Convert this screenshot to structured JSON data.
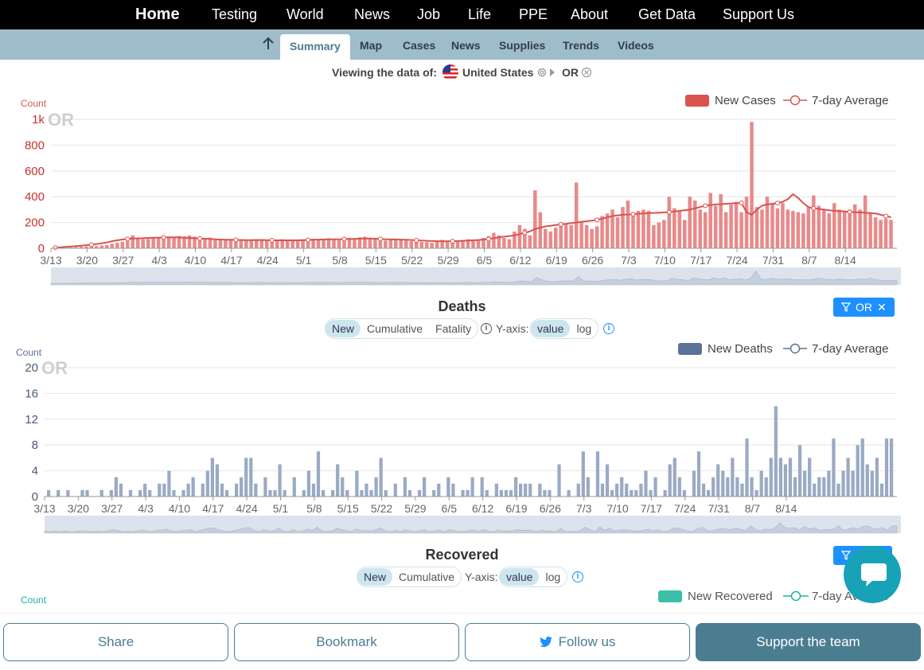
{
  "topnav": {
    "items": [
      "Home",
      "Testing",
      "World",
      "News",
      "Job",
      "Life",
      "PPE",
      "About",
      "Get Data",
      "Support Us"
    ]
  },
  "subnav": {
    "active": "Summary",
    "items": [
      "Map",
      "Cases",
      "News",
      "Supplies",
      "Trends",
      "Videos"
    ]
  },
  "viewing": {
    "prefix": "Viewing the data of:",
    "country": "United States",
    "state": "OR"
  },
  "x_ticks": [
    "3/13",
    "3/20",
    "3/27",
    "4/3",
    "4/10",
    "4/17",
    "4/24",
    "5/1",
    "5/8",
    "5/15",
    "5/22",
    "5/29",
    "6/5",
    "6/12",
    "6/19",
    "6/26",
    "7/3",
    "7/10",
    "7/17",
    "7/24",
    "7/31",
    "8/7",
    "8/14"
  ],
  "cases_chart": {
    "ylabel": "Count",
    "watermark": "OR",
    "legend_series": "New Cases",
    "legend_avg": "7-day Average",
    "color": "#d9534f",
    "bar_color": "#e88a8a",
    "y_ticks": [
      "0",
      "200",
      "400",
      "600",
      "800",
      "1k"
    ],
    "ymax": 1000
  },
  "deaths_section": {
    "title": "Deaths",
    "tabs": [
      "New",
      "Cumulative",
      "Fatality"
    ],
    "yaxis_label": "Y-axis:",
    "scale": [
      "value",
      "log"
    ],
    "filter_label": "OR"
  },
  "deaths_chart": {
    "ylabel": "Count",
    "watermark": "OR",
    "legend_series": "New Deaths",
    "legend_avg": "7-day Average",
    "color": "#5b7298",
    "bar_color": "#9aaac4",
    "y_ticks": [
      "0",
      "4",
      "8",
      "12",
      "16",
      "20"
    ],
    "ymax": 20
  },
  "recovered_section": {
    "title": "Recovered",
    "tabs": [
      "New",
      "Cumulative"
    ],
    "yaxis_label": "Y-axis:",
    "scale": [
      "value",
      "log"
    ],
    "ylabel": "Count",
    "legend_series": "New Recovered",
    "legend_avg": "7-day Average",
    "color": "#20b2a0"
  },
  "chart_data": [
    {
      "type": "bar",
      "title": "",
      "ylabel": "Count",
      "series": [
        {
          "name": "New Cases",
          "values": [
            0,
            3,
            5,
            7,
            10,
            12,
            14,
            16,
            18,
            22,
            25,
            35,
            42,
            50,
            55,
            100,
            80,
            70,
            72,
            80,
            85,
            75,
            90,
            88,
            95,
            92,
            100,
            90,
            80,
            75,
            82,
            70,
            65,
            72,
            68,
            60,
            58,
            62,
            65,
            70,
            68,
            60,
            55,
            62,
            70,
            60,
            55,
            58,
            62,
            60,
            75,
            72,
            70,
            78,
            65,
            62,
            70,
            80,
            75,
            85,
            90,
            78,
            72,
            65,
            60,
            70,
            75,
            70,
            65,
            55,
            60,
            50,
            48,
            42,
            55,
            65,
            50,
            45,
            55,
            60,
            70,
            58,
            62,
            80,
            95,
            120,
            100,
            80,
            70,
            130,
            180,
            150,
            100,
            450,
            280,
            150,
            130,
            160,
            200,
            185,
            180,
            510,
            200,
            180,
            150,
            170,
            250,
            270,
            300,
            240,
            320,
            370,
            260,
            290,
            300,
            290,
            180,
            200,
            220,
            400,
            310,
            290,
            220,
            400,
            370,
            300,
            280,
            430,
            330,
            420,
            280,
            340,
            360,
            280,
            400,
            980,
            320,
            300,
            400,
            340,
            310,
            350,
            300,
            290,
            280,
            270,
            320,
            410,
            330,
            300,
            270,
            350,
            300,
            280,
            300,
            340,
            300,
            410,
            280,
            240,
            220,
            230,
            220
          ],
          "avg": [
            5,
            8,
            11,
            14,
            17,
            20,
            24,
            28,
            32,
            38,
            45,
            55,
            62,
            68,
            72,
            75,
            77,
            78,
            80,
            82,
            83,
            84,
            85,
            85,
            84,
            82,
            80,
            78,
            76,
            74,
            72,
            70,
            68,
            66,
            66,
            65,
            64,
            63,
            63,
            64,
            64,
            63,
            62,
            62,
            62,
            62,
            62,
            62,
            63,
            64,
            66,
            67,
            68,
            69,
            70,
            70,
            71,
            72,
            73,
            74,
            75,
            75,
            74,
            72,
            70,
            69,
            68,
            67,
            66,
            64,
            62,
            60,
            58,
            56,
            55,
            55,
            55,
            55,
            56,
            58,
            60,
            62,
            64,
            68,
            72,
            78,
            85,
            90,
            95,
            100,
            110,
            120,
            130,
            150,
            160,
            170,
            175,
            180,
            185,
            190,
            195,
            200,
            205,
            210,
            215,
            220,
            230,
            240,
            250,
            255,
            260,
            262,
            265,
            268,
            270,
            272,
            274,
            276,
            278,
            280,
            285,
            290,
            295,
            300,
            310,
            320,
            330,
            335,
            340,
            342,
            345,
            348,
            350,
            352,
            280,
            260,
            300,
            330,
            340,
            345,
            350,
            360,
            380,
            420,
            390,
            350,
            320,
            310,
            305,
            300,
            295,
            290,
            288,
            285,
            282,
            280,
            278,
            275,
            272,
            270,
            260,
            250,
            240
          ]
        }
      ],
      "x_range": [
        "3/13",
        "8/20"
      ],
      "ylim": [
        0,
        1000
      ]
    },
    {
      "type": "bar",
      "title": "Deaths",
      "ylabel": "Count",
      "series": [
        {
          "name": "New Deaths",
          "values": [
            1,
            0,
            1,
            0,
            1,
            0,
            0,
            1,
            1,
            0,
            0,
            1,
            0,
            1,
            3,
            2,
            0,
            1,
            0,
            1,
            2,
            1,
            0,
            2,
            2,
            4,
            1,
            0,
            1,
            2,
            3,
            0,
            2,
            4,
            6,
            5,
            2,
            1,
            0,
            2,
            3,
            6,
            6,
            2,
            0,
            3,
            1,
            1,
            5,
            1,
            0,
            3,
            0,
            1,
            4,
            2,
            7,
            1,
            0,
            1,
            5,
            3,
            1,
            0,
            4,
            1,
            2,
            1,
            3,
            6,
            1,
            0,
            2,
            0,
            3,
            1,
            0,
            1,
            3,
            0,
            1,
            2,
            0,
            3,
            2,
            0,
            1,
            1,
            3,
            0,
            3,
            1,
            0,
            2,
            1,
            1,
            1,
            3,
            2,
            2,
            2,
            0,
            2,
            1,
            1,
            0,
            5,
            0,
            1,
            0,
            2,
            7,
            3,
            0,
            7,
            2,
            5,
            1,
            2,
            3,
            2,
            1,
            1,
            2,
            4,
            1,
            3,
            0,
            1,
            5,
            6,
            3,
            1,
            0,
            4,
            7,
            2,
            1,
            3,
            5,
            4,
            3,
            6,
            3,
            2,
            9,
            3,
            1,
            4,
            3,
            6,
            14,
            6,
            5,
            6,
            3,
            8,
            4,
            6,
            2,
            3,
            3,
            4,
            9,
            2,
            4,
            6,
            4,
            8,
            9,
            5,
            4,
            6,
            2,
            9,
            9
          ]
        }
      ],
      "x_range": [
        "3/13",
        "8/20"
      ],
      "ylim": [
        0,
        20
      ]
    }
  ],
  "bottom": {
    "share": "Share",
    "bookmark": "Bookmark",
    "follow": "Follow us",
    "support": "Support the team"
  }
}
